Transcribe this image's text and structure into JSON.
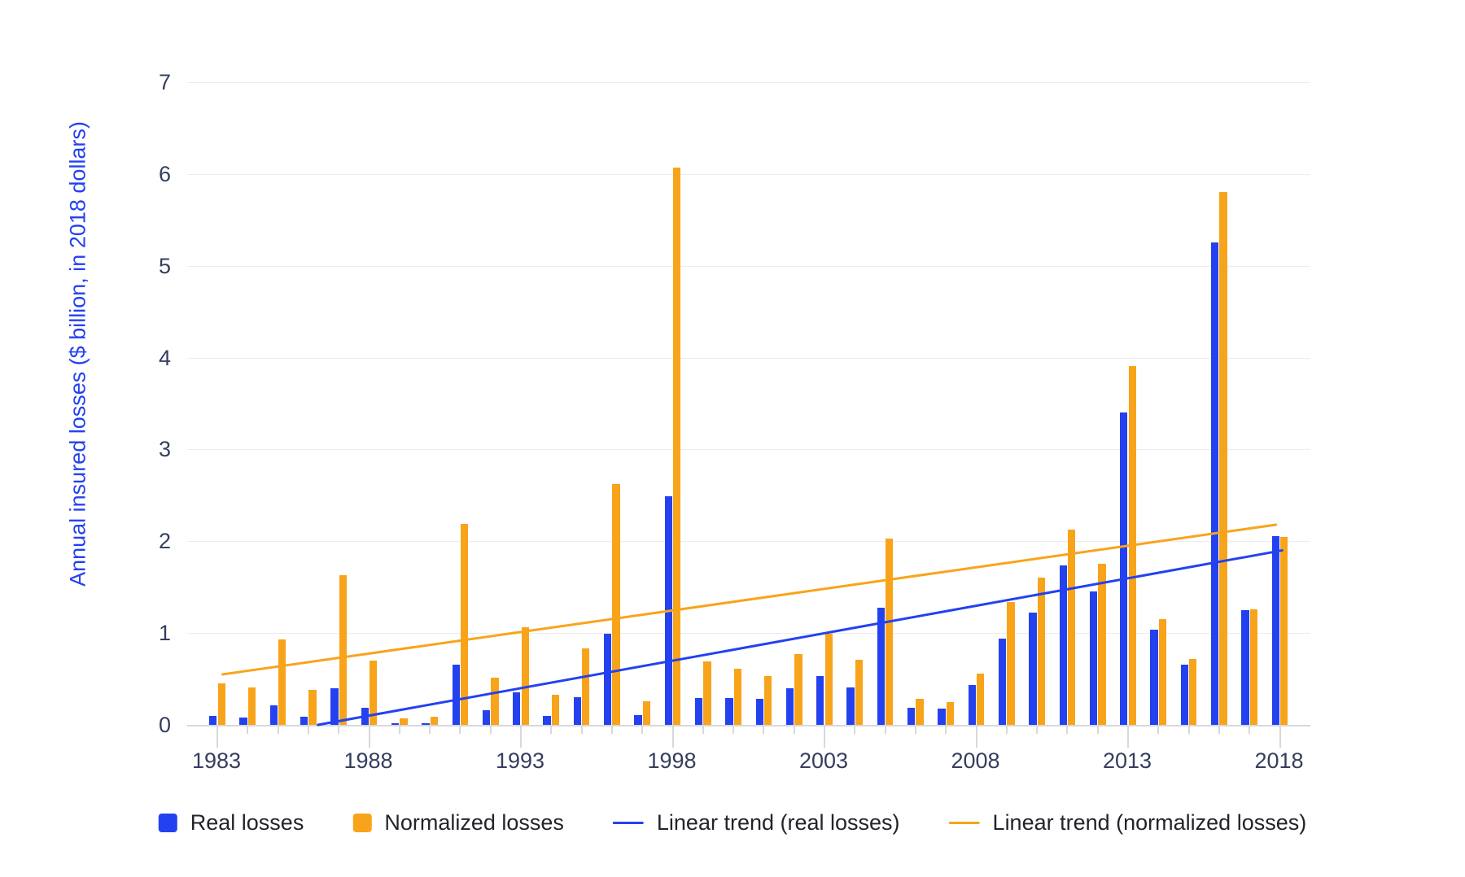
{
  "chart_data": {
    "type": "bar",
    "title": "",
    "xlabel": "",
    "ylabel": "Annual insured losses ($ billion, in 2018 dollars)",
    "ylim": [
      0,
      7
    ],
    "yticks": [
      0,
      1,
      2,
      3,
      4,
      5,
      6,
      7
    ],
    "grid": "horizontal",
    "legend_position": "bottom",
    "years": [
      1983,
      1984,
      1985,
      1986,
      1987,
      1988,
      1989,
      1990,
      1991,
      1992,
      1993,
      1994,
      1995,
      1996,
      1997,
      1998,
      1999,
      2000,
      2001,
      2002,
      2003,
      2004,
      2005,
      2006,
      2007,
      2008,
      2009,
      2010,
      2011,
      2012,
      2013,
      2014,
      2015,
      2016,
      2017,
      2018
    ],
    "x_labeled_years": [
      1983,
      1988,
      1993,
      1998,
      2003,
      2008,
      2013,
      2018
    ],
    "series": [
      {
        "name": "Real losses",
        "color": "#2441f0",
        "values": [
          0.1,
          0.08,
          0.21,
          0.09,
          0.4,
          0.19,
          0.02,
          0.02,
          0.66,
          0.16,
          0.35,
          0.1,
          0.3,
          0.99,
          0.11,
          2.49,
          0.29,
          0.29,
          0.28,
          0.4,
          0.53,
          0.41,
          1.28,
          0.19,
          0.18,
          0.43,
          0.94,
          1.22,
          1.74,
          1.45,
          3.4,
          1.04,
          0.66,
          5.25,
          1.25,
          2.06
        ]
      },
      {
        "name": "Normalized losses",
        "color": "#f8a41b",
        "values": [
          0.45,
          0.41,
          0.93,
          0.38,
          1.63,
          0.7,
          0.07,
          0.09,
          2.19,
          0.51,
          1.06,
          0.33,
          0.83,
          2.62,
          0.26,
          6.07,
          0.69,
          0.61,
          0.53,
          0.77,
          0.99,
          0.71,
          2.03,
          0.28,
          0.25,
          0.56,
          1.34,
          1.6,
          2.13,
          1.75,
          3.91,
          1.15,
          0.72,
          5.8,
          1.26,
          2.05
        ]
      }
    ],
    "trend_lines": [
      {
        "name": "Linear trend (real losses)",
        "color": "#2441f0",
        "start_year": 1983,
        "start_value": -0.2,
        "end_year": 2018.1,
        "end_value": 1.9,
        "clip_at_zero": true
      },
      {
        "name": "Linear trend (normalized losses)",
        "color": "#f8a41b",
        "start_year": 1983.2,
        "start_value": 0.55,
        "end_year": 2017.9,
        "end_value": 2.18,
        "clip_at_zero": false
      }
    ],
    "legend": [
      "Real losses",
      "Normalized losses",
      "Linear trend (real losses)",
      "Linear trend (normalized losses)"
    ]
  },
  "style": {
    "background": "#ffffff",
    "grid_color": "#ededf0",
    "axis_color": "#d7d8dd",
    "tick_label_color": "#343f5e",
    "legend_text_color": "#23242a",
    "y_title_color": "#2441f0"
  }
}
